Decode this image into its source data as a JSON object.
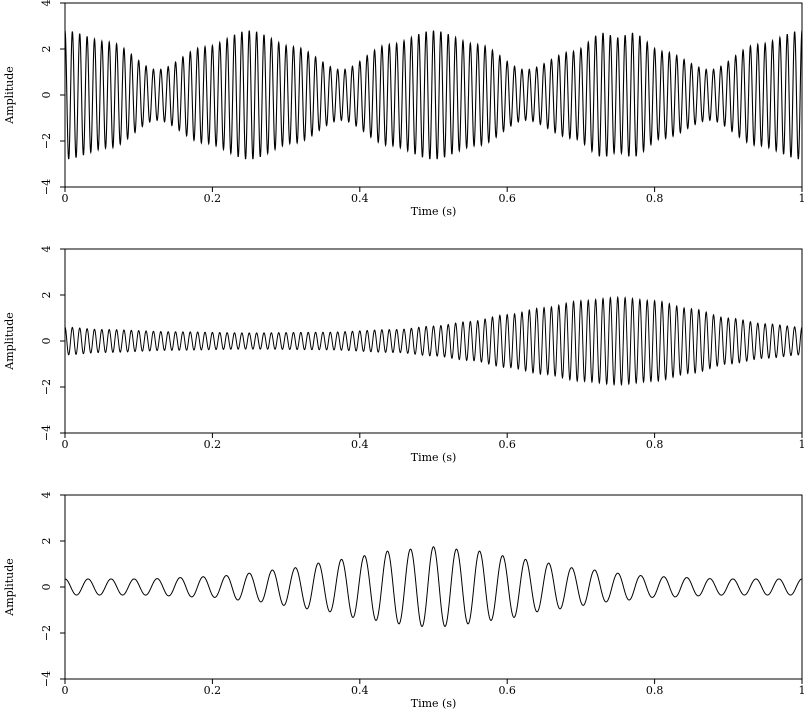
{
  "chart_data": [
    {
      "type": "line",
      "xlabel": "Time (s)",
      "ylabel": "Amplitude",
      "xlim": [
        0,
        1
      ],
      "ylim": [
        -4,
        4
      ],
      "xticks": [
        "0",
        "0.2",
        "0.4",
        "0.6",
        "0.8",
        "1"
      ],
      "yticks": [
        "−4",
        "−2",
        "0",
        "2",
        "4"
      ],
      "grid": false,
      "legend": "none",
      "series": [
        {
          "carrier_cycles_per_s": 100,
          "envelope": {
            "t": [
              0,
              0.06,
              0.125,
              0.19,
              0.25,
              0.31,
              0.375,
              0.44,
              0.5,
              0.56,
              0.625,
              0.69,
              0.73,
              0.75,
              0.77,
              0.81,
              0.875,
              0.94,
              1.0
            ],
            "amplitude": [
              2.8,
              2.3,
              1.1,
              2.1,
              2.8,
              2.1,
              1.1,
              2.2,
              2.8,
              2.2,
              1.1,
              1.9,
              2.7,
              2.5,
              2.7,
              1.9,
              1.1,
              2.2,
              2.8
            ]
          }
        }
      ]
    },
    {
      "type": "line",
      "xlabel": "Time (s)",
      "ylabel": "Amplitude",
      "xlim": [
        0,
        1
      ],
      "ylim": [
        -4,
        4
      ],
      "xticks": [
        "0",
        "0.2",
        "0.4",
        "0.6",
        "0.8",
        "1"
      ],
      "yticks": [
        "−4",
        "−2",
        "0",
        "2",
        "4"
      ],
      "grid": false,
      "legend": "none",
      "series": [
        {
          "carrier_cycles_per_s": 100,
          "envelope": {
            "t": [
              0,
              0.05,
              0.15,
              0.25,
              0.35,
              0.45,
              0.5,
              0.55,
              0.6,
              0.65,
              0.7,
              0.75,
              0.8,
              0.85,
              0.9,
              0.95,
              1.0
            ],
            "amplitude": [
              0.6,
              0.5,
              0.4,
              0.35,
              0.38,
              0.5,
              0.65,
              0.85,
              1.15,
              1.45,
              1.75,
              1.9,
              1.75,
              1.4,
              1.0,
              0.75,
              0.6
            ]
          }
        }
      ]
    },
    {
      "type": "line",
      "xlabel": "Time (s)",
      "ylabel": "Amplitude",
      "xlim": [
        0,
        1
      ],
      "ylim": [
        -4,
        4
      ],
      "xticks": [
        "0",
        "0.2",
        "0.4",
        "0.6",
        "0.8",
        "1"
      ],
      "yticks": [
        "−4",
        "−2",
        "0",
        "2",
        "4"
      ],
      "grid": false,
      "legend": "none",
      "series": [
        {
          "carrier_cycles_per_s": 32,
          "envelope": {
            "t": [
              0,
              0.1,
              0.2,
              0.25,
              0.3,
              0.35,
              0.4,
              0.45,
              0.5,
              0.55,
              0.6,
              0.65,
              0.7,
              0.75,
              0.8,
              0.9,
              1.0
            ],
            "amplitude": [
              0.35,
              0.35,
              0.45,
              0.6,
              0.8,
              1.05,
              1.35,
              1.6,
              1.75,
              1.6,
              1.35,
              1.05,
              0.8,
              0.6,
              0.45,
              0.35,
              0.35
            ]
          }
        }
      ]
    }
  ]
}
